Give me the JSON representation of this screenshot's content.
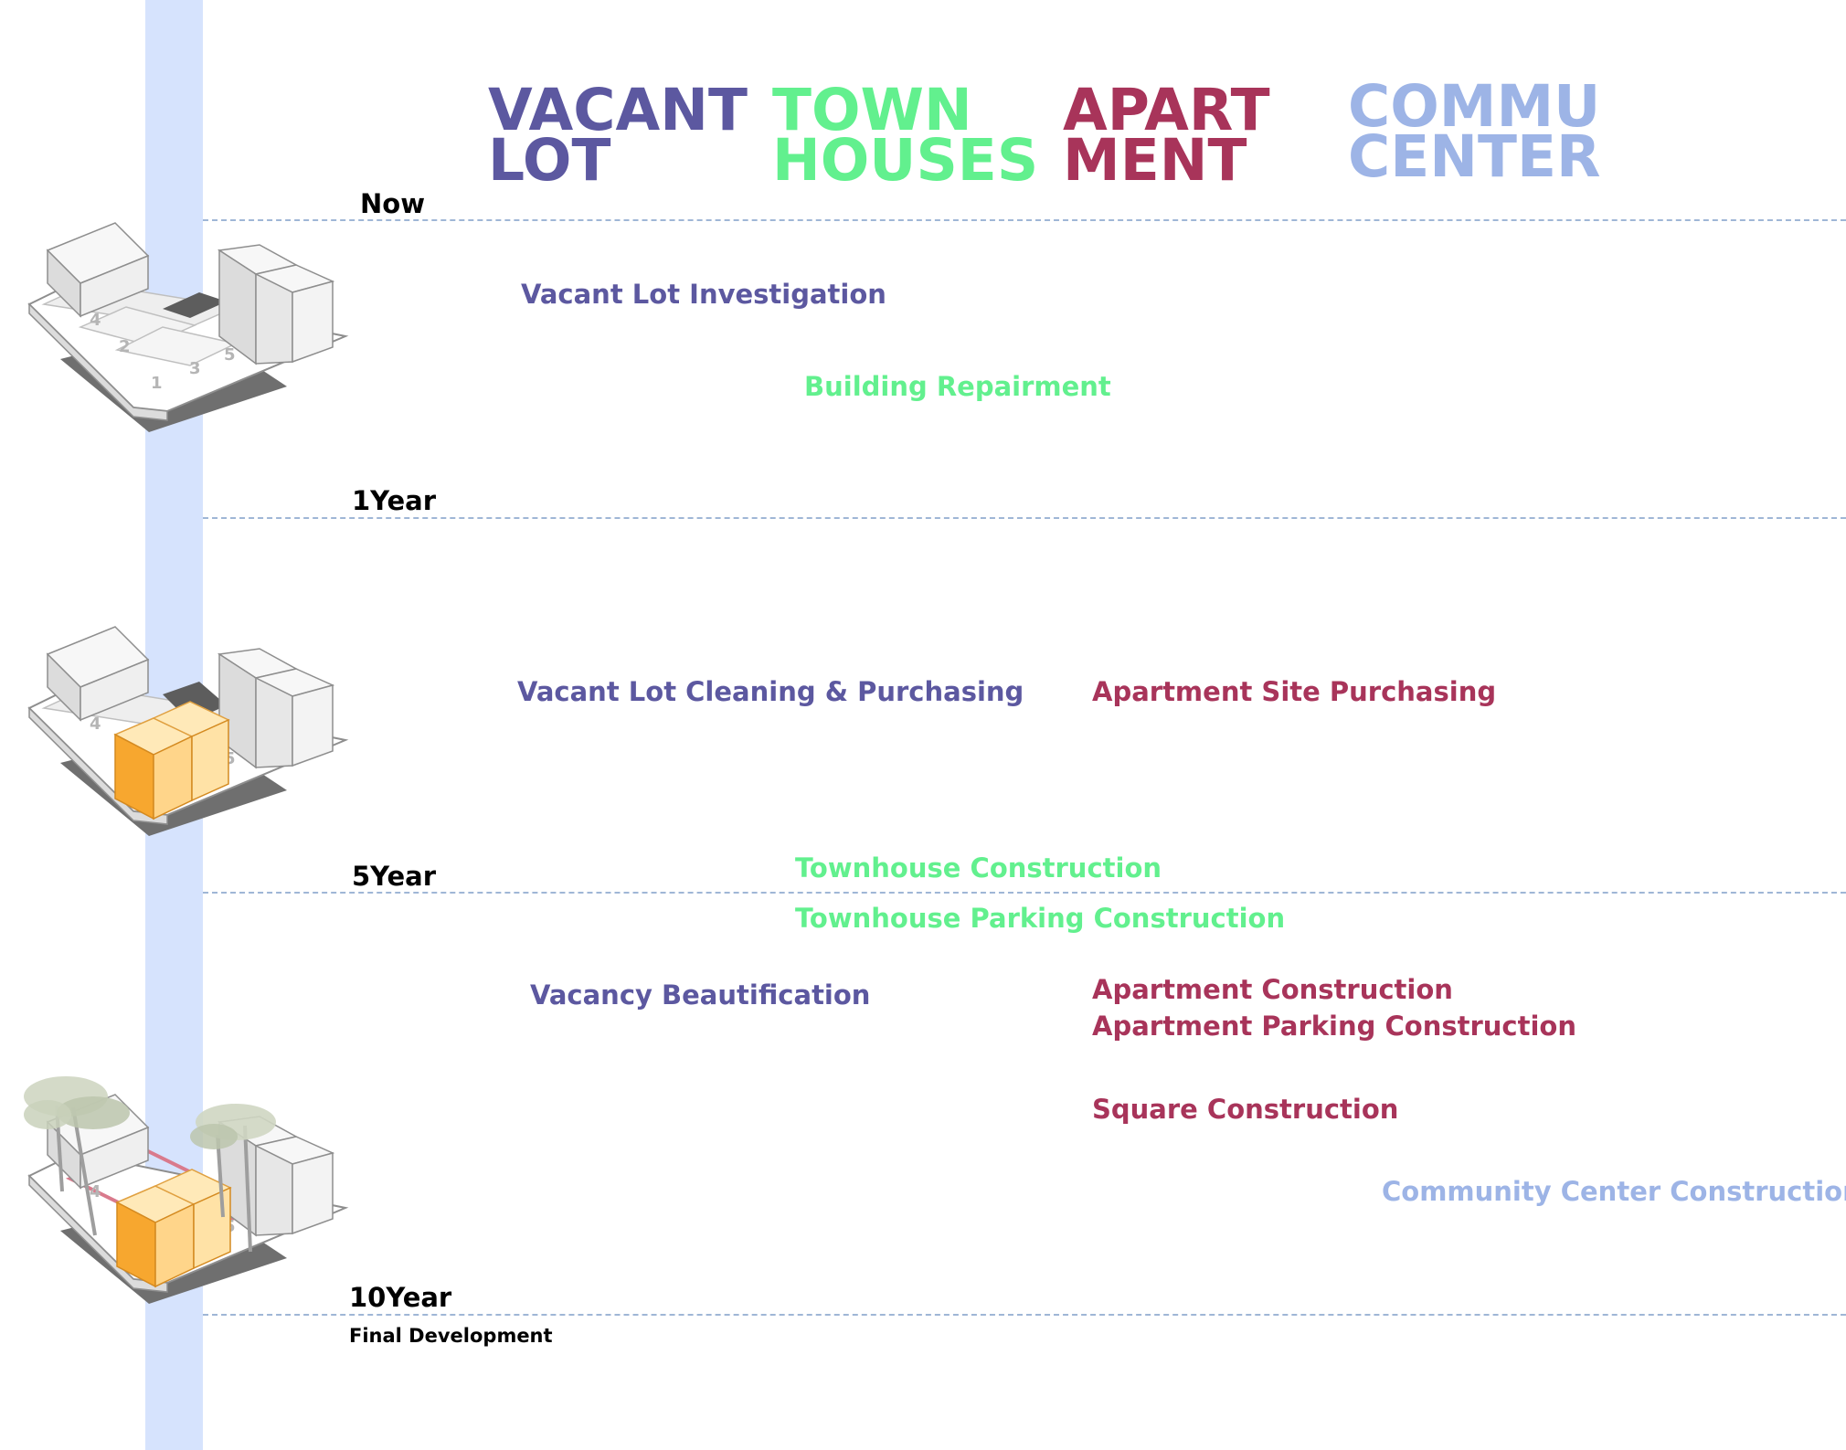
{
  "colors": {
    "vacant": "#5c58a0",
    "townhouse": "#62f08e",
    "apartment": "#a8345a",
    "community": "#9db4e6",
    "spine": "#d6e3fd",
    "gridline": "#9fb6d6",
    "highlight": "#f7b43a"
  },
  "headers": [
    {
      "line1": "VACANT",
      "line2": "LOT",
      "key": "vacant"
    },
    {
      "line1": "TOWN",
      "line2": "HOUSES",
      "key": "townhouse"
    },
    {
      "line1": "APART",
      "line2": "MENT",
      "key": "apartment"
    },
    {
      "line1": "COMMU",
      "line2": "CENTER",
      "key": "community"
    }
  ],
  "timeline": [
    {
      "label": "Now"
    },
    {
      "label": "1Year"
    },
    {
      "label": "5Year"
    },
    {
      "label": "10Year",
      "sub": "Final Development"
    }
  ],
  "tasks": [
    {
      "text": "Vacant Lot Investigation",
      "key": "vacant"
    },
    {
      "text": "Building Repairment",
      "key": "townhouse"
    },
    {
      "text": "Vacant Lot Cleaning & Purchasing",
      "key": "vacant"
    },
    {
      "text": "Apartment Site Purchasing",
      "key": "apartment"
    },
    {
      "text": "Townhouse Construction",
      "key": "townhouse"
    },
    {
      "text": "Townhouse Parking Construction",
      "key": "townhouse"
    },
    {
      "text": "Vacancy Beautification",
      "key": "vacant"
    },
    {
      "text": "Apartment Construction",
      "key": "apartment"
    },
    {
      "text": "Apartment Parking Construction",
      "key": "apartment"
    },
    {
      "text": "Square Construction",
      "key": "apartment"
    },
    {
      "text": "Community Center Construction",
      "key": "community"
    }
  ],
  "models": {
    "now": {
      "lots": [
        "4",
        "2",
        "1",
        "3",
        "5"
      ]
    },
    "year5": {
      "lots": [
        "4",
        "5"
      ]
    },
    "year10": {
      "lots": [
        "4",
        "5"
      ]
    }
  }
}
